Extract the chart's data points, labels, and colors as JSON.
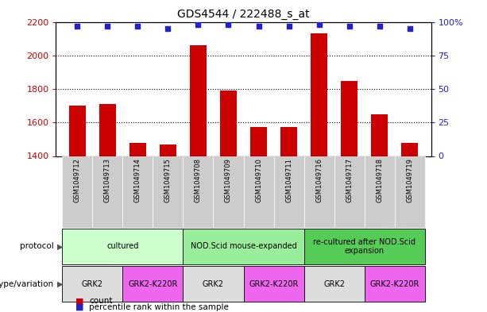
{
  "title": "GDS4544 / 222488_s_at",
  "samples": [
    "GSM1049712",
    "GSM1049713",
    "GSM1049714",
    "GSM1049715",
    "GSM1049708",
    "GSM1049709",
    "GSM1049710",
    "GSM1049711",
    "GSM1049716",
    "GSM1049717",
    "GSM1049718",
    "GSM1049719"
  ],
  "counts": [
    1700,
    1710,
    1480,
    1470,
    2060,
    1790,
    1575,
    1575,
    2130,
    1845,
    1650,
    1480
  ],
  "percentile_ranks": [
    97,
    97,
    97,
    95,
    98,
    98,
    97,
    97,
    98,
    97,
    97,
    95
  ],
  "ylim_left": [
    1400,
    2200
  ],
  "ylim_right": [
    0,
    100
  ],
  "yticks_left": [
    1400,
    1600,
    1800,
    2000,
    2200
  ],
  "yticks_right": [
    0,
    25,
    50,
    75,
    100
  ],
  "bar_color": "#cc0000",
  "dot_color": "#2222cc",
  "protocol_groups": [
    {
      "label": "cultured",
      "start": 0,
      "end": 3,
      "color": "#ccffcc"
    },
    {
      "label": "NOD.Scid mouse-expanded",
      "start": 4,
      "end": 7,
      "color": "#99ee99"
    },
    {
      "label": "re-cultured after NOD.Scid\nexpansion",
      "start": 8,
      "end": 11,
      "color": "#55cc55"
    }
  ],
  "genotype_groups": [
    {
      "label": "GRK2",
      "start": 0,
      "end": 1,
      "color": "#dddddd"
    },
    {
      "label": "GRK2-K220R",
      "start": 2,
      "end": 3,
      "color": "#ee66ee"
    },
    {
      "label": "GRK2",
      "start": 4,
      "end": 5,
      "color": "#dddddd"
    },
    {
      "label": "GRK2-K220R",
      "start": 6,
      "end": 7,
      "color": "#ee66ee"
    },
    {
      "label": "GRK2",
      "start": 8,
      "end": 9,
      "color": "#dddddd"
    },
    {
      "label": "GRK2-K220R",
      "start": 10,
      "end": 11,
      "color": "#ee66ee"
    }
  ],
  "legend_count_color": "#cc0000",
  "legend_dot_color": "#2222cc",
  "grid_color": "#888888",
  "sample_bg_color": "#cccccc",
  "bar_width": 0.55
}
